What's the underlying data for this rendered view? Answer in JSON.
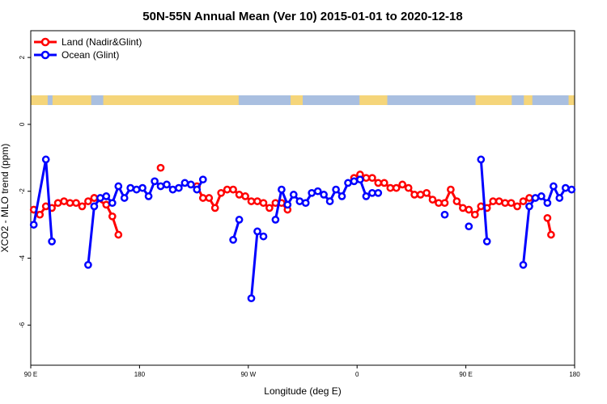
{
  "chart_data": {
    "type": "line",
    "title": "50N-55N Annual Mean (Ver 10)   2015-01-01 to 2020-12-18",
    "xlabel": "Longitude (deg E)",
    "ylabel": "XCO2 - MLO trend (ppm)",
    "xlim": [
      90,
      540
    ],
    "ylim": [
      -7.2,
      2.8
    ],
    "x_ticks": [
      {
        "value": 90,
        "label": "90 E"
      },
      {
        "value": 180,
        "label": "180"
      },
      {
        "value": 270,
        "label": "90 W"
      },
      {
        "value": 360,
        "label": "0"
      },
      {
        "value": 450,
        "label": "90 E"
      },
      {
        "value": 540,
        "label": "180"
      }
    ],
    "y_ticks": [
      {
        "value": 2,
        "label": "2"
      },
      {
        "value": 0,
        "label": "0"
      },
      {
        "value": -2,
        "label": "-2"
      },
      {
        "value": -4,
        "label": "-4"
      },
      {
        "value": -6,
        "label": "-6"
      }
    ],
    "grid": false,
    "legend_position": "top-left",
    "land_ocean_strip_colors": {
      "land": "#f5d57a",
      "ocean": "#a9bfe0"
    },
    "series": [
      {
        "name": "Land (Nadir&Glint)",
        "color": "#ff0000",
        "segments": [
          [
            [
              92.5,
              -2.55
            ],
            [
              97.5,
              -2.7
            ],
            [
              102.5,
              -2.45
            ],
            [
              107.5,
              -2.5
            ],
            [
              112.5,
              -2.35
            ],
            [
              117.5,
              -2.3
            ],
            [
              122.5,
              -2.35
            ],
            [
              127.5,
              -2.35
            ],
            [
              132.5,
              -2.45
            ],
            [
              137.5,
              -2.3
            ],
            [
              142.5,
              -2.2
            ]
          ],
          [
            [
              142.5,
              -2.2
            ],
            [
              152.5,
              -2.4
            ],
            [
              157.5,
              -2.75
            ],
            [
              162.5,
              -3.3
            ]
          ],
          [
            [
              197.5,
              -1.3
            ]
          ],
          [
            [
              227.5,
              -1.85
            ],
            [
              232.5,
              -2.2
            ],
            [
              237.5,
              -2.2
            ],
            [
              242.5,
              -2.5
            ],
            [
              247.5,
              -2.05
            ],
            [
              252.5,
              -1.95
            ],
            [
              257.5,
              -1.95
            ],
            [
              262.5,
              -2.1
            ],
            [
              267.5,
              -2.15
            ],
            [
              272.5,
              -2.3
            ],
            [
              277.5,
              -2.3
            ],
            [
              282.5,
              -2.35
            ],
            [
              287.5,
              -2.5
            ],
            [
              292.5,
              -2.35
            ],
            [
              297.5,
              -2.35
            ],
            [
              302.5,
              -2.55
            ]
          ],
          [
            [
              357.5,
              -1.6
            ],
            [
              362.5,
              -1.5
            ],
            [
              367.5,
              -1.6
            ],
            [
              372.5,
              -1.6
            ],
            [
              377.5,
              -1.75
            ],
            [
              382.5,
              -1.75
            ],
            [
              387.5,
              -1.9
            ],
            [
              392.5,
              -1.9
            ],
            [
              397.5,
              -1.8
            ],
            [
              402.5,
              -1.9
            ],
            [
              407.5,
              -2.1
            ],
            [
              412.5,
              -2.1
            ],
            [
              417.5,
              -2.05
            ],
            [
              422.5,
              -2.25
            ],
            [
              427.5,
              -2.35
            ],
            [
              432.5,
              -2.35
            ],
            [
              437.5,
              -1.95
            ],
            [
              442.5,
              -2.3
            ],
            [
              447.5,
              -2.5
            ],
            [
              452.5,
              -2.55
            ],
            [
              457.5,
              -2.7
            ],
            [
              462.5,
              -2.45
            ],
            [
              467.5,
              -2.5
            ],
            [
              472.5,
              -2.3
            ],
            [
              477.5,
              -2.3
            ],
            [
              482.5,
              -2.35
            ],
            [
              487.5,
              -2.35
            ],
            [
              492.5,
              -2.45
            ],
            [
              497.5,
              -2.3
            ],
            [
              502.5,
              -2.2
            ]
          ],
          [
            [
              517.5,
              -2.8
            ],
            [
              520.5,
              -3.3
            ]
          ]
        ]
      },
      {
        "name": "Ocean (Glint)",
        "color": "#0000ff",
        "segments": [
          [
            [
              92.5,
              -3.0
            ],
            [
              102.5,
              -1.05
            ],
            [
              107.5,
              -3.5
            ]
          ],
          [
            [
              137.5,
              -4.2
            ],
            [
              142.5,
              -2.45
            ],
            [
              147.5,
              -2.2
            ],
            [
              152.5,
              -2.15
            ],
            [
              157.5,
              -2.35
            ],
            [
              162.5,
              -1.85
            ],
            [
              167.5,
              -2.2
            ],
            [
              172.5,
              -1.9
            ],
            [
              177.5,
              -1.95
            ],
            [
              182.5,
              -1.9
            ],
            [
              187.5,
              -2.15
            ],
            [
              192.5,
              -1.7
            ],
            [
              197.5,
              -1.85
            ],
            [
              202.5,
              -1.8
            ],
            [
              207.5,
              -1.95
            ],
            [
              212.5,
              -1.9
            ],
            [
              217.5,
              -1.75
            ],
            [
              222.5,
              -1.8
            ],
            [
              227.5,
              -1.95
            ],
            [
              232.5,
              -1.65
            ]
          ],
          [
            [
              257.5,
              -3.45
            ],
            [
              262.5,
              -2.85
            ]
          ],
          [
            [
              272.5,
              -5.2
            ],
            [
              277.5,
              -3.2
            ],
            [
              282.5,
              -3.35
            ]
          ],
          [
            [
              292.5,
              -2.85
            ],
            [
              297.5,
              -1.95
            ],
            [
              302.5,
              -2.4
            ],
            [
              307.5,
              -2.1
            ],
            [
              312.5,
              -2.3
            ],
            [
              317.5,
              -2.35
            ],
            [
              322.5,
              -2.05
            ],
            [
              327.5,
              -2.0
            ],
            [
              332.5,
              -2.1
            ],
            [
              337.5,
              -2.3
            ],
            [
              342.5,
              -1.95
            ],
            [
              347.5,
              -2.15
            ],
            [
              352.5,
              -1.75
            ],
            [
              357.5,
              -1.7
            ],
            [
              362.5,
              -1.65
            ],
            [
              367.5,
              -2.15
            ],
            [
              372.5,
              -2.05
            ],
            [
              377.5,
              -2.05
            ]
          ],
          [
            [
              432.5,
              -2.7
            ]
          ],
          [
            [
              452.5,
              -3.05
            ]
          ],
          [
            [
              462.5,
              -1.05
            ],
            [
              467.5,
              -3.5
            ]
          ],
          [
            [
              497.5,
              -4.2
            ],
            [
              502.5,
              -2.45
            ],
            [
              507.5,
              -2.2
            ],
            [
              512.5,
              -2.15
            ],
            [
              517.5,
              -2.35
            ],
            [
              522.5,
              -1.85
            ],
            [
              527.5,
              -2.2
            ],
            [
              532.5,
              -1.9
            ],
            [
              537.5,
              -1.95
            ]
          ]
        ]
      }
    ]
  }
}
